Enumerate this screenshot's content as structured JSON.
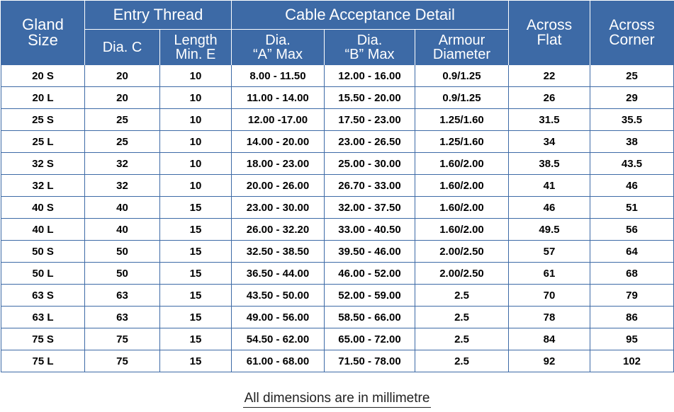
{
  "header": {
    "gland_size": [
      "Gland",
      "Size"
    ],
    "entry_thread": "Entry Thread",
    "cable_acceptance": "Cable Acceptance Detail",
    "dia_c": "Dia. C",
    "length_min_e": [
      "Length",
      "Min. E"
    ],
    "dia_a": [
      "Dia.",
      "“A” Max"
    ],
    "dia_b": [
      "Dia.",
      "“B” Max"
    ],
    "armour": [
      "Armour",
      "Diameter"
    ],
    "across_flat": [
      "Across",
      "Flat"
    ],
    "across_corner": [
      "Across",
      "Corner"
    ]
  },
  "rows": [
    [
      "20 S",
      "20",
      "10",
      "8.00 - 11.50",
      "12.00 - 16.00",
      "0.9/1.25",
      "22",
      "25"
    ],
    [
      "20 L",
      "20",
      "10",
      "11.00 - 14.00",
      "15.50 - 20.00",
      "0.9/1.25",
      "26",
      "29"
    ],
    [
      "25 S",
      "25",
      "10",
      "12.00 -17.00",
      "17.50 - 23.00",
      "1.25/1.60",
      "31.5",
      "35.5"
    ],
    [
      "25 L",
      "25",
      "10",
      "14.00 - 20.00",
      "23.00 - 26.50",
      "1.25/1.60",
      "34",
      "38"
    ],
    [
      "32 S",
      "32",
      "10",
      "18.00 - 23.00",
      "25.00 - 30.00",
      "1.60/2.00",
      "38.5",
      "43.5"
    ],
    [
      "32 L",
      "32",
      "10",
      "20.00 - 26.00",
      "26.70 - 33.00",
      "1.60/2.00",
      "41",
      "46"
    ],
    [
      "40 S",
      "40",
      "15",
      "23.00 - 30.00",
      "32.00 - 37.50",
      "1.60/2.00",
      "46",
      "51"
    ],
    [
      "40 L",
      "40",
      "15",
      "26.00 - 32.20",
      "33.00 - 40.50",
      "1.60/2.00",
      "49.5",
      "56"
    ],
    [
      "50 S",
      "50",
      "15",
      "32.50 - 38.50",
      "39.50 - 46.00",
      "2.00/2.50",
      "57",
      "64"
    ],
    [
      "50 L",
      "50",
      "15",
      "36.50 - 44.00",
      "46.00 - 52.00",
      "2.00/2.50",
      "61",
      "68"
    ],
    [
      "63 S",
      "63",
      "15",
      "43.50 - 50.00",
      "52.00 - 59.00",
      "2.5",
      "70",
      "79"
    ],
    [
      "63 L",
      "63",
      "15",
      "49.00 - 56.00",
      "58.50 - 66.00",
      "2.5",
      "78",
      "86"
    ],
    [
      "75 S",
      "75",
      "15",
      "54.50 - 62.00",
      "65.00 - 72.00",
      "2.5",
      "84",
      "95"
    ],
    [
      "75 L",
      "75",
      "15",
      "61.00 - 68.00",
      "71.50 - 78.00",
      "2.5",
      "92",
      "102"
    ]
  ],
  "footnote": "All dimensions are in millimetre",
  "colors": {
    "header_bg": "#3d6aa6",
    "border": "#3d6aa6"
  }
}
